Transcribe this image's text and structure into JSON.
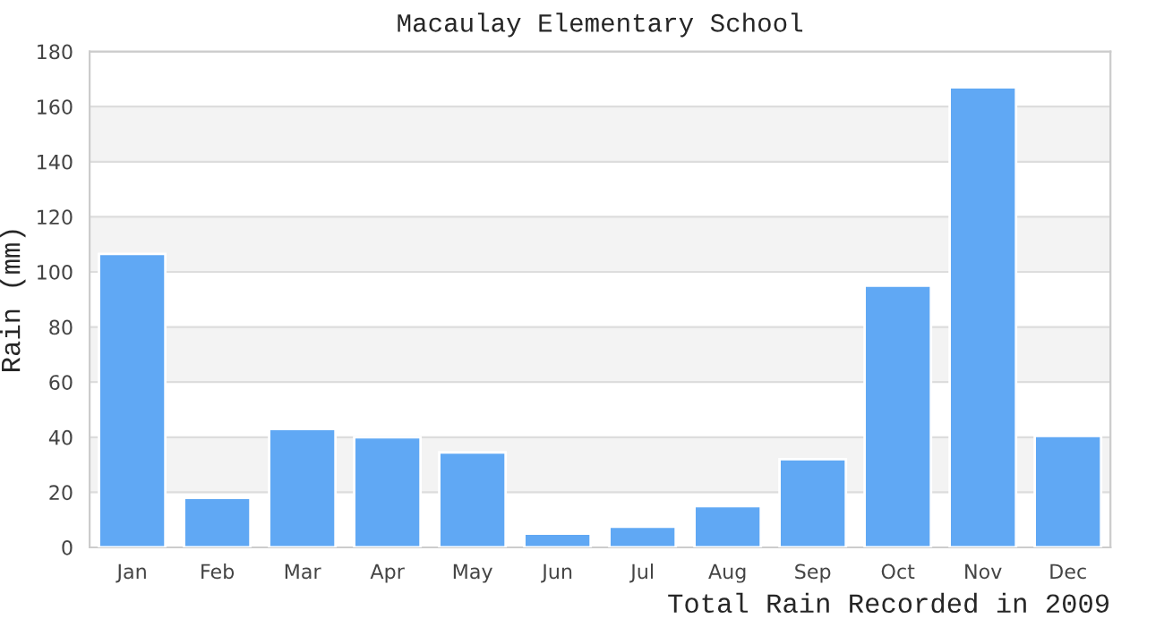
{
  "chart_data": {
    "type": "bar",
    "title": "Macaulay Elementary School",
    "xlabel": "Total Rain Recorded in 2009",
    "ylabel": "Rain (mm)",
    "categories": [
      "Jan",
      "Feb",
      "Mar",
      "Apr",
      "May",
      "Jun",
      "Jul",
      "Aug",
      "Sep",
      "Oct",
      "Nov",
      "Dec"
    ],
    "values": [
      106.5,
      18,
      43,
      40,
      34.5,
      5,
      7.5,
      15,
      32,
      95,
      167,
      40.5
    ],
    "color": "#60a8f4",
    "ylim": [
      0,
      180
    ],
    "yticks": [
      0,
      20,
      40,
      60,
      80,
      100,
      120,
      140,
      160,
      180
    ],
    "grid": "y",
    "bands": [
      {
        "axis": "y",
        "from": 20,
        "to": 40,
        "color": "#f3f3f3"
      },
      {
        "axis": "y",
        "from": 60,
        "to": 80,
        "color": "#f3f3f3"
      },
      {
        "axis": "y",
        "from": 100,
        "to": 120,
        "color": "#f3f3f3"
      },
      {
        "axis": "y",
        "from": 140,
        "to": 160,
        "color": "#f3f3f3"
      }
    ]
  }
}
